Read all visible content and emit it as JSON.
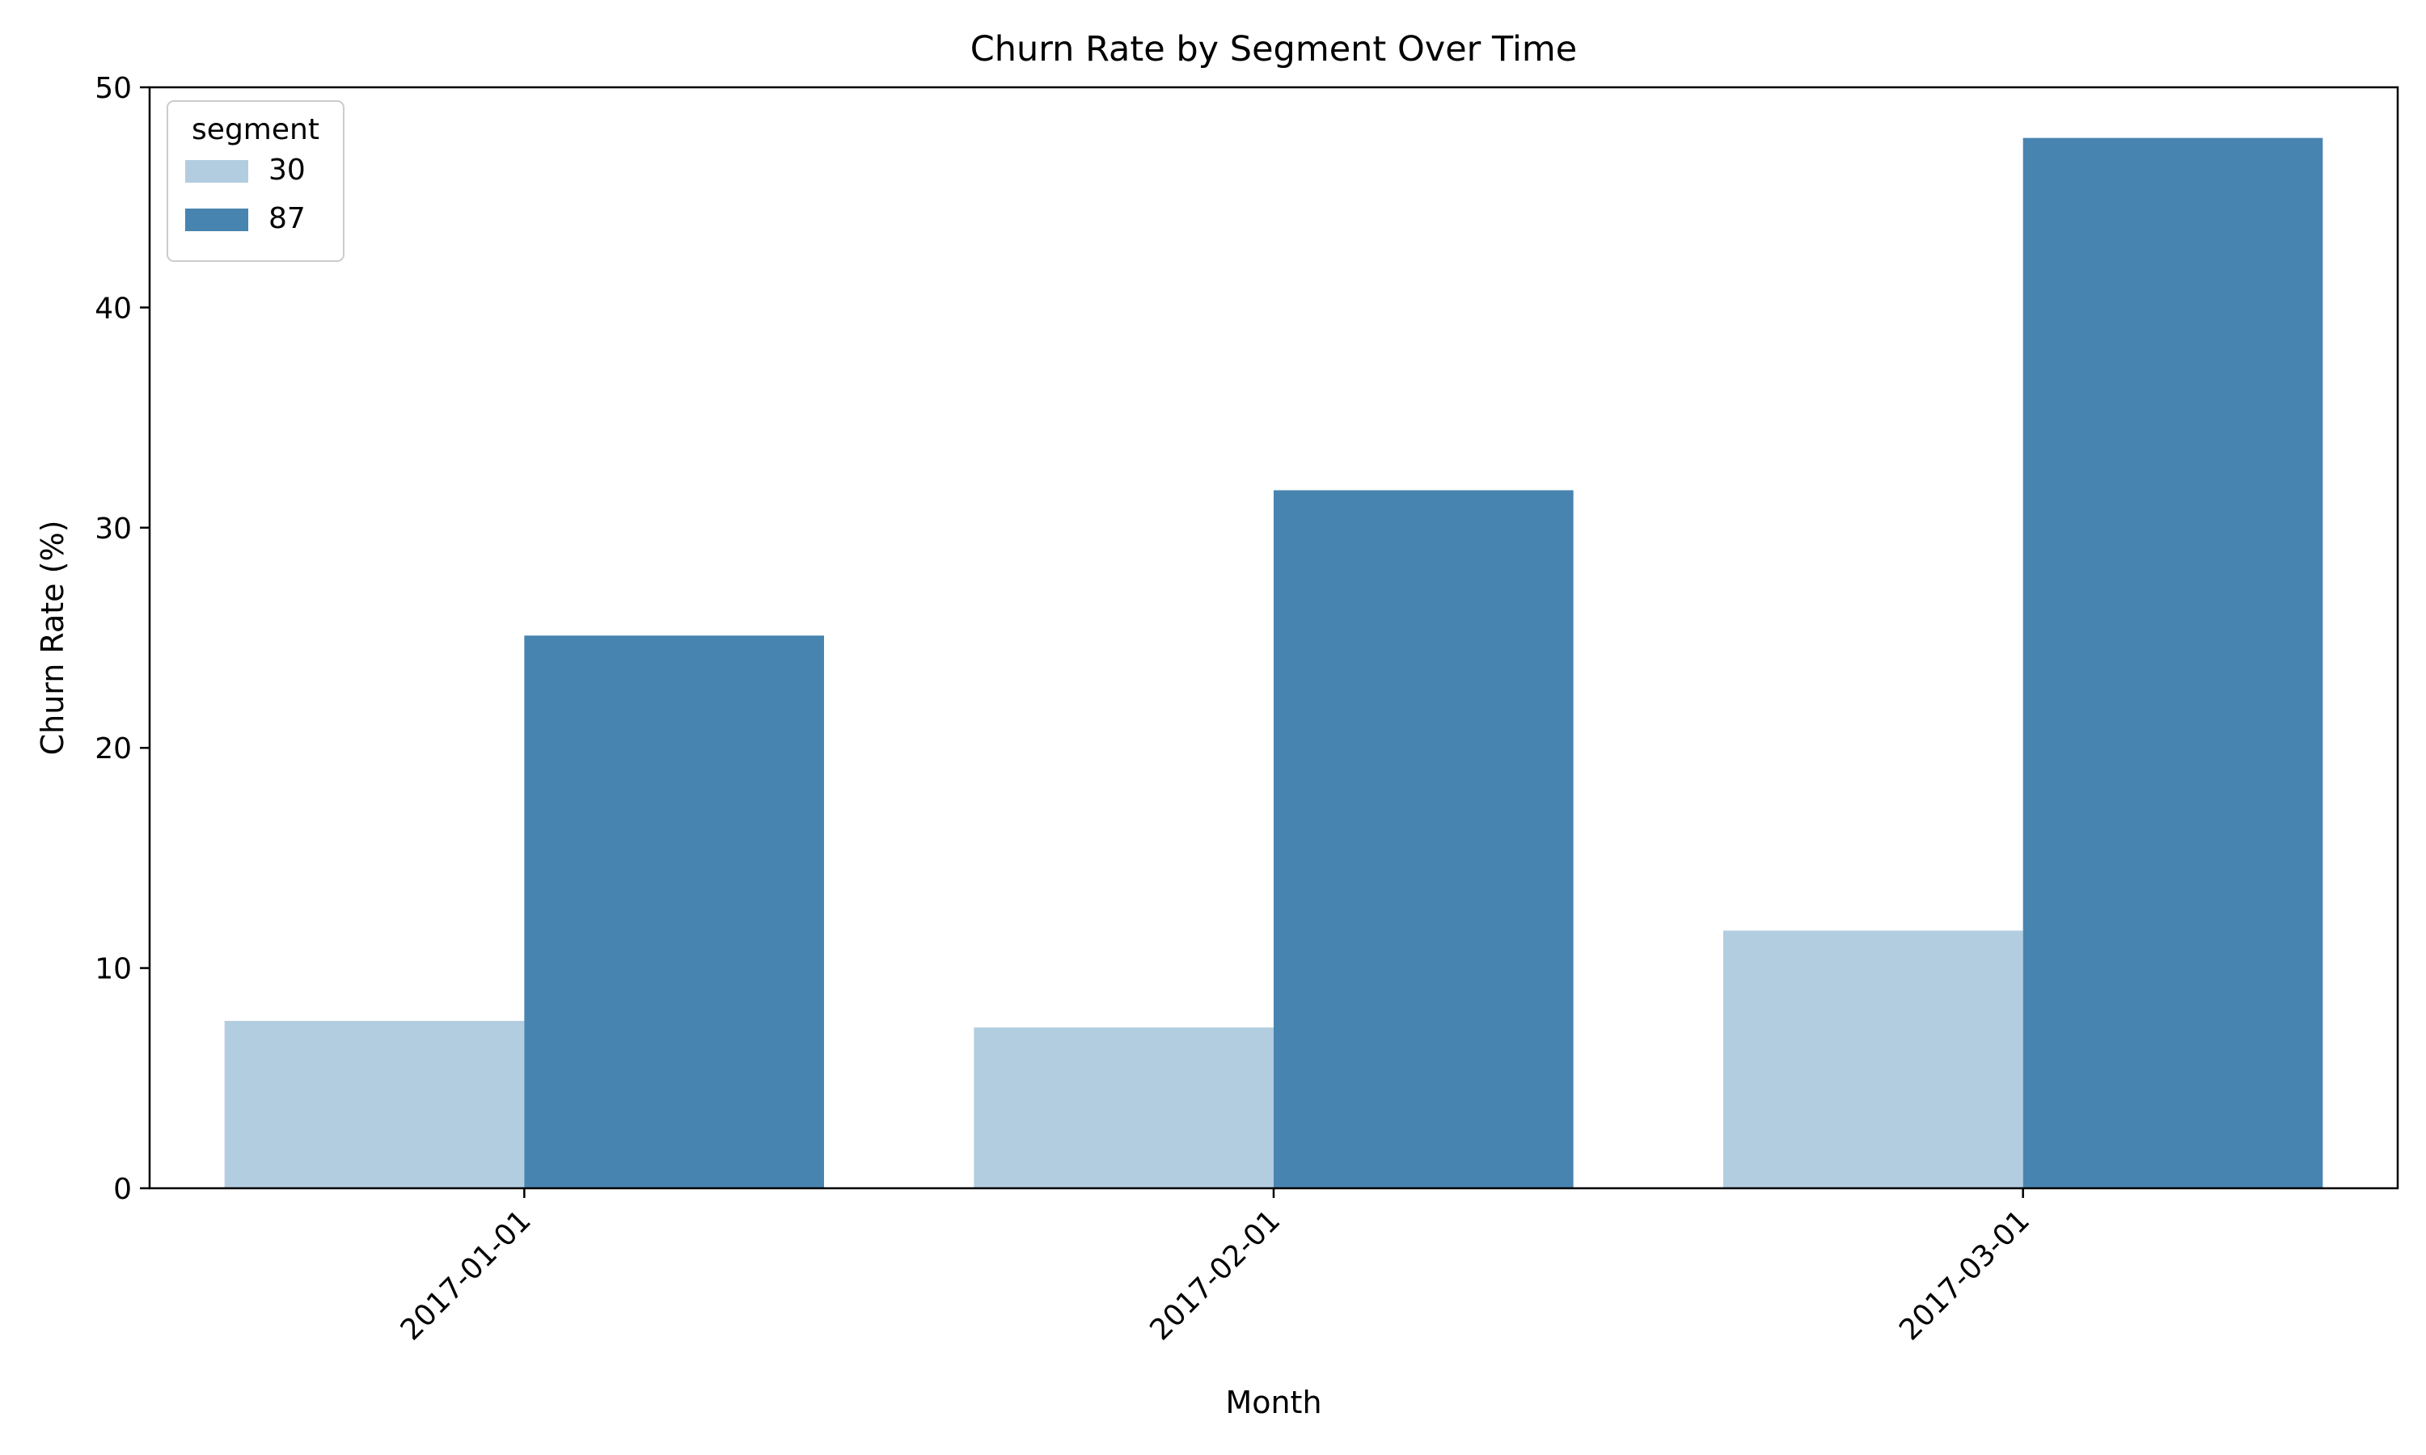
{
  "chart_data": {
    "type": "bar",
    "title": "Churn Rate by Segment Over Time",
    "xlabel": "Month",
    "ylabel": "Churn Rate (%)",
    "categories": [
      "2017-01-01",
      "2017-02-01",
      "2017-03-01"
    ],
    "series": [
      {
        "name": "30",
        "values": [
          7.6,
          7.3,
          11.7
        ],
        "color": "#b3cde0"
      },
      {
        "name": "87",
        "values": [
          25.1,
          31.7,
          47.7
        ],
        "color": "#4884b0"
      }
    ],
    "ylim": [
      0,
      50
    ],
    "yticks": [
      0,
      10,
      20,
      30,
      40,
      50
    ],
    "legend": {
      "title": "segment",
      "placement": "top-left"
    },
    "grid": false
  }
}
